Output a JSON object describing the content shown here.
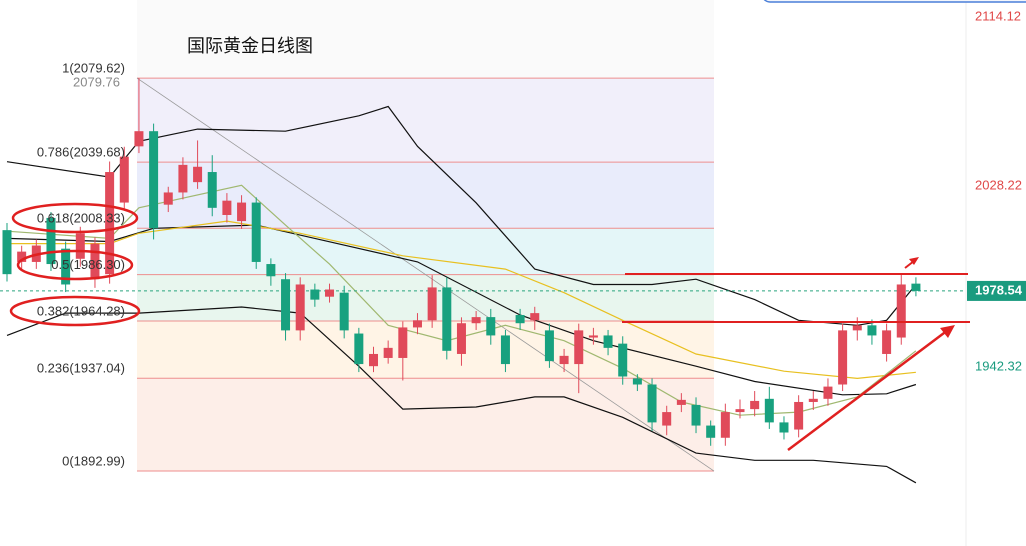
{
  "chart_data": {
    "type": "candlestick",
    "title": "国际黄金日线图",
    "up_color": "#e04a5a",
    "down_color": "#18a17f",
    "ylim": [
      1857.4,
      2116.7
    ],
    "yticks": [
      2114.12,
      2028.22,
      1942.32
    ],
    "last_price": 1978.54,
    "fib_top_price": 2079.76,
    "fib_levels": [
      {
        "label": "1(2079.62)",
        "price": 2079.62
      },
      {
        "label": "0.786(2039.68)",
        "price": 2039.68
      },
      {
        "label": "0.618(2008.33)",
        "price": 2008.33
      },
      {
        "label": "0.5(1986.30)",
        "price": 1986.3
      },
      {
        "label": "0.382(1964.28)",
        "price": 1964.28
      },
      {
        "label": "0.236(1937.04)",
        "price": 1937.04
      },
      {
        "label": "0(1892.99)",
        "price": 1892.99
      }
    ],
    "candles": {
      "open": [
        2007.4,
        1992.3,
        1992.3,
        2013.2,
        1998.6,
        1993.8,
        1984.1,
        1986.5,
        2020.5,
        2047.2,
        2054.4,
        2019.5,
        2025.3,
        2030.2,
        2035,
        2014.6,
        2011.7,
        2020.5,
        1991.3,
        1984.1,
        1959.8,
        1979.2,
        1975.8,
        1977.7,
        1958.3,
        1942.8,
        1946.7,
        1946.7,
        1961.2,
        1964.6,
        1980.2,
        1948.6,
        1963.2,
        1966.1,
        1957.4,
        1967.1,
        1964.6,
        1959.8,
        1943.8,
        1943.8,
        1956.4,
        1957.4,
        1953.5,
        1937,
        1934.1,
        1914.6,
        1924.4,
        1924.4,
        1914.6,
        1908.8,
        1921,
        1922.4,
        1927.3,
        1916.1,
        1912.7,
        1925.8,
        1927.3,
        1934.1,
        1959.8,
        1962.2,
        1948.6,
        1956.4,
        1982
      ],
      "high": [
        2010.8,
        2000,
        2003,
        2016,
        2002,
        2009,
        2004,
        2040,
        2047,
        2079.6,
        2058,
        2028,
        2042,
        2050,
        2043,
        2025,
        2024,
        2023,
        1994,
        1987,
        1985,
        1982,
        1982,
        1981,
        1961,
        1952,
        1955,
        1964,
        1968,
        1986,
        1985,
        1966,
        1969,
        1970,
        1960,
        1970,
        1971,
        1963,
        1951,
        1963,
        1961,
        1960,
        1957,
        1939,
        1937,
        1924,
        1930,
        1928,
        1917,
        1925,
        1927,
        1931,
        1933,
        1919,
        1929,
        1931,
        1937,
        1963,
        1966,
        1965,
        1963,
        1987,
        1985
      ],
      "low": [
        1983,
        1989,
        1989,
        1988,
        1978,
        1990,
        1980,
        1982,
        2017,
        2044,
        2003,
        2016,
        2022,
        2027,
        2014,
        2011,
        2008,
        1989,
        1981,
        1955,
        1955,
        1971,
        1973,
        1956,
        1940,
        1940,
        1944,
        1936,
        1958,
        1961,
        1946,
        1943,
        1960,
        1953,
        1940,
        1960,
        1960,
        1942,
        1940,
        1930,
        1953,
        1948,
        1934,
        1931,
        1912,
        1910,
        1921,
        1911,
        1905,
        1905,
        1918,
        1919,
        1913,
        1908,
        1909,
        1922,
        1924,
        1931,
        1955,
        1953,
        1945,
        1953,
        1976
      ],
      "close": [
        1986.5,
        1997.2,
        2000.1,
        1991.3,
        1981.6,
        2005.9,
        2001,
        2035,
        2042.3,
        2054.4,
        2008.3,
        2025.3,
        2038.4,
        2037.5,
        2018,
        2021.4,
        2020.5,
        1992.3,
        1985.5,
        1959.8,
        1981.6,
        1974.4,
        1979.2,
        1959.8,
        1943.8,
        1948.6,
        1951.5,
        1961.2,
        1964.6,
        1980.2,
        1950.1,
        1963.2,
        1966.1,
        1957.4,
        1943.8,
        1963.2,
        1968,
        1945.2,
        1947.7,
        1959.8,
        1957.4,
        1951.5,
        1937.9,
        1934.1,
        1916.1,
        1921,
        1926.8,
        1914.6,
        1908.8,
        1921,
        1922.4,
        1926.3,
        1916.1,
        1911.3,
        1925.8,
        1927.3,
        1933.1,
        1959.8,
        1962.2,
        1957.4,
        1959.8,
        1981.6,
        1978.54
      ]
    },
    "overlays": [
      {
        "color": "#111111",
        "x": [
          0,
          7,
          9,
          13,
          19,
          24,
          26,
          28,
          32,
          36,
          40,
          44,
          47,
          51,
          54,
          58,
          60,
          62
        ],
        "values": [
          2039.9,
          2032.6,
          2049.6,
          2055.4,
          2054.4,
          2061.7,
          2066.1,
          2047.2,
          2020.4,
          1988.9,
          1981.6,
          1981.6,
          1984.1,
          1974.4,
          1964.6,
          1962.2,
          1964.6,
          1981.6
        ]
      },
      {
        "color": "#111111",
        "x": [
          0,
          7,
          10,
          17,
          21,
          28,
          35,
          40,
          47,
          51,
          57,
          60,
          62
        ],
        "values": [
          2003.5,
          2002,
          2008.3,
          2009.8,
          2003.5,
          1992.3,
          1967.1,
          1954.9,
          1942.8,
          1935.5,
          1929.2,
          1929.7,
          1934.1
        ]
      },
      {
        "color": "#111111",
        "x": [
          0,
          4,
          9,
          16,
          20,
          24,
          27,
          32,
          36,
          38,
          42,
          47,
          51,
          55,
          60,
          62
        ],
        "values": [
          1957.4,
          1968,
          1968,
          1970.9,
          1968,
          1942.8,
          1922.4,
          1923.4,
          1928.2,
          1928.2,
          1918.5,
          1901.5,
          1898.1,
          1898.1,
          1895.2,
          1887.4
        ]
      },
      {
        "color": "#e8c020",
        "x": [
          0,
          7,
          9,
          15,
          20,
          27,
          34,
          38,
          42,
          47,
          53,
          58,
          62
        ],
        "values": [
          2001,
          2001,
          2005.9,
          2011.7,
          2005.9,
          1995.2,
          1988.9,
          1977.7,
          1964.6,
          1948.6,
          1940.4,
          1937,
          1939.9
        ]
      },
      {
        "color": "#a0b870",
        "x": [
          0,
          7,
          9,
          16,
          19,
          22,
          26,
          30,
          34,
          38,
          42,
          46,
          50,
          54,
          58,
          62
        ],
        "values": [
          2006.9,
          2003.5,
          2018,
          2028.7,
          2009.8,
          1991.3,
          1962.2,
          1954.9,
          1962.2,
          1954.9,
          1941.8,
          1925.8,
          1919.5,
          1921,
          1928.2,
          1950.1
        ]
      }
    ]
  }
}
